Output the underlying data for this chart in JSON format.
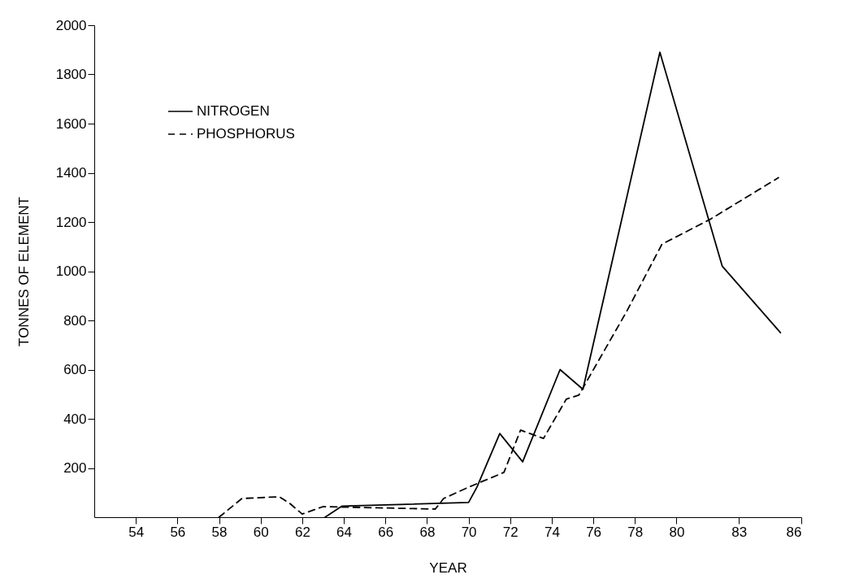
{
  "chart_data": {
    "type": "line",
    "xlabel": "YEAR",
    "ylabel": "TONNES OF ELEMENT",
    "xlim": [
      52,
      86
    ],
    "xticks": [
      54,
      56,
      58,
      60,
      62,
      64,
      66,
      68,
      70,
      72,
      74,
      76,
      78,
      80,
      83,
      86
    ],
    "ylim": [
      0,
      2000
    ],
    "yticks": [
      200,
      400,
      600,
      800,
      1000,
      1200,
      1400,
      1600,
      1800,
      2000
    ],
    "grid": false,
    "legend": "top left",
    "series": [
      {
        "name": "NITROGEN",
        "color": "#000000",
        "line_style": "solid",
        "x": [
          63.1,
          63.9,
          70,
          70.4,
          71.5,
          72.6,
          74.4,
          75.5,
          79.2,
          82.2,
          85
        ],
        "values": [
          0,
          45,
          60,
          122,
          340,
          225,
          600,
          520,
          1890,
          1020,
          750
        ]
      },
      {
        "name": "PHOSPHORUS",
        "color": "#000000",
        "line_style": "dashed",
        "x": [
          58,
          59.1,
          60.9,
          61.4,
          62,
          63,
          68.4,
          68.8,
          70,
          71.7,
          72.5,
          73.6,
          74.7,
          75.3,
          77.6,
          79.3,
          81.6,
          84.9
        ],
        "values": [
          0,
          76,
          83,
          56,
          13,
          43,
          33,
          76,
          122,
          182,
          354,
          320,
          480,
          496,
          836,
          1110,
          1210,
          1380
        ]
      }
    ]
  }
}
